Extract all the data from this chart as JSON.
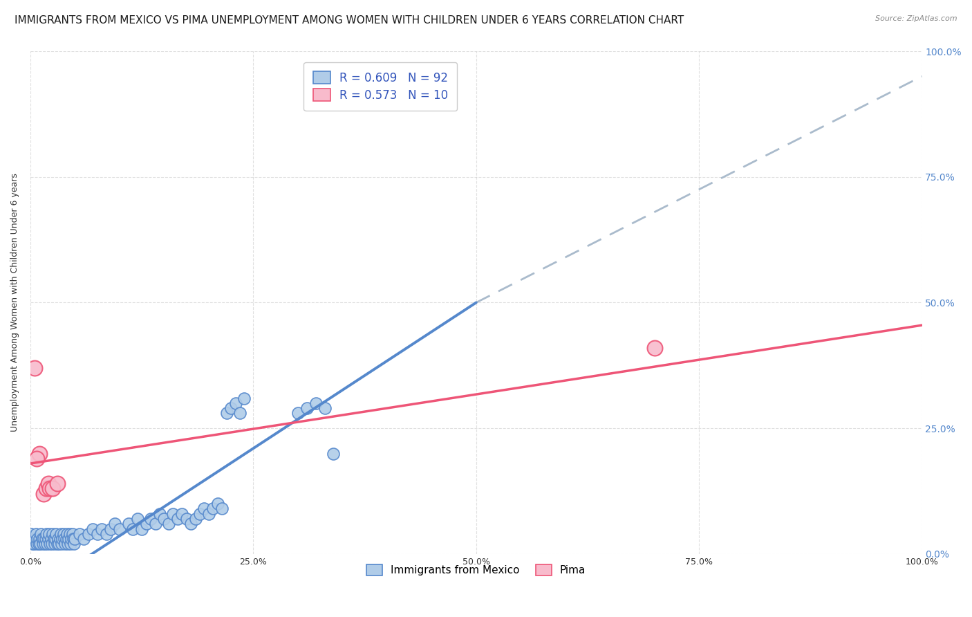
{
  "title": "IMMIGRANTS FROM MEXICO VS PIMA UNEMPLOYMENT AMONG WOMEN WITH CHILDREN UNDER 6 YEARS CORRELATION CHART",
  "source": "Source: ZipAtlas.com",
  "ylabel": "Unemployment Among Women with Children Under 6 years",
  "legend_label1": "Immigrants from Mexico",
  "legend_label2": "Pima",
  "R1": 0.609,
  "N1": 92,
  "R2": 0.573,
  "N2": 10,
  "blue_color": "#5588CC",
  "blue_fill": "#B0CCE8",
  "pink_color": "#EE5577",
  "pink_fill": "#F8BBCC",
  "blue_points": [
    [
      0.001,
      0.04
    ],
    [
      0.002,
      0.02
    ],
    [
      0.003,
      0.03
    ],
    [
      0.004,
      0.02
    ],
    [
      0.005,
      0.03
    ],
    [
      0.006,
      0.04
    ],
    [
      0.007,
      0.02
    ],
    [
      0.008,
      0.03
    ],
    [
      0.009,
      0.02
    ],
    [
      0.01,
      0.03
    ],
    [
      0.011,
      0.02
    ],
    [
      0.012,
      0.04
    ],
    [
      0.013,
      0.03
    ],
    [
      0.014,
      0.02
    ],
    [
      0.015,
      0.03
    ],
    [
      0.016,
      0.02
    ],
    [
      0.017,
      0.03
    ],
    [
      0.018,
      0.04
    ],
    [
      0.019,
      0.02
    ],
    [
      0.02,
      0.03
    ],
    [
      0.021,
      0.04
    ],
    [
      0.022,
      0.02
    ],
    [
      0.023,
      0.03
    ],
    [
      0.024,
      0.02
    ],
    [
      0.025,
      0.04
    ],
    [
      0.026,
      0.03
    ],
    [
      0.027,
      0.02
    ],
    [
      0.028,
      0.03
    ],
    [
      0.029,
      0.04
    ],
    [
      0.03,
      0.02
    ],
    [
      0.031,
      0.03
    ],
    [
      0.032,
      0.02
    ],
    [
      0.033,
      0.03
    ],
    [
      0.034,
      0.04
    ],
    [
      0.035,
      0.02
    ],
    [
      0.036,
      0.03
    ],
    [
      0.037,
      0.04
    ],
    [
      0.038,
      0.03
    ],
    [
      0.039,
      0.02
    ],
    [
      0.04,
      0.03
    ],
    [
      0.041,
      0.04
    ],
    [
      0.042,
      0.02
    ],
    [
      0.043,
      0.03
    ],
    [
      0.044,
      0.04
    ],
    [
      0.045,
      0.02
    ],
    [
      0.046,
      0.03
    ],
    [
      0.047,
      0.04
    ],
    [
      0.048,
      0.03
    ],
    [
      0.049,
      0.02
    ],
    [
      0.05,
      0.03
    ],
    [
      0.055,
      0.04
    ],
    [
      0.06,
      0.03
    ],
    [
      0.065,
      0.04
    ],
    [
      0.07,
      0.05
    ],
    [
      0.075,
      0.04
    ],
    [
      0.08,
      0.05
    ],
    [
      0.085,
      0.04
    ],
    [
      0.09,
      0.05
    ],
    [
      0.095,
      0.06
    ],
    [
      0.1,
      0.05
    ],
    [
      0.11,
      0.06
    ],
    [
      0.115,
      0.05
    ],
    [
      0.12,
      0.07
    ],
    [
      0.125,
      0.05
    ],
    [
      0.13,
      0.06
    ],
    [
      0.135,
      0.07
    ],
    [
      0.14,
      0.06
    ],
    [
      0.145,
      0.08
    ],
    [
      0.15,
      0.07
    ],
    [
      0.155,
      0.06
    ],
    [
      0.16,
      0.08
    ],
    [
      0.165,
      0.07
    ],
    [
      0.17,
      0.08
    ],
    [
      0.175,
      0.07
    ],
    [
      0.18,
      0.06
    ],
    [
      0.185,
      0.07
    ],
    [
      0.19,
      0.08
    ],
    [
      0.195,
      0.09
    ],
    [
      0.2,
      0.08
    ],
    [
      0.205,
      0.09
    ],
    [
      0.21,
      0.1
    ],
    [
      0.215,
      0.09
    ],
    [
      0.22,
      0.28
    ],
    [
      0.225,
      0.29
    ],
    [
      0.23,
      0.3
    ],
    [
      0.235,
      0.28
    ],
    [
      0.24,
      0.31
    ],
    [
      0.3,
      0.28
    ],
    [
      0.31,
      0.29
    ],
    [
      0.32,
      0.3
    ],
    [
      0.33,
      0.29
    ],
    [
      0.34,
      0.2
    ]
  ],
  "pink_points": [
    [
      0.005,
      0.37
    ],
    [
      0.01,
      0.2
    ],
    [
      0.015,
      0.12
    ],
    [
      0.018,
      0.13
    ],
    [
      0.02,
      0.14
    ],
    [
      0.022,
      0.13
    ],
    [
      0.025,
      0.13
    ],
    [
      0.03,
      0.14
    ],
    [
      0.7,
      0.41
    ],
    [
      0.007,
      0.19
    ]
  ],
  "blue_line_x": [
    0.0,
    0.5
  ],
  "blue_line_y": [
    -0.08,
    0.5
  ],
  "pink_line_x": [
    0.0,
    1.0
  ],
  "pink_line_y": [
    0.18,
    0.455
  ],
  "dash_line_x": [
    0.5,
    1.0
  ],
  "dash_line_y": [
    0.5,
    0.95
  ],
  "xlim": [
    0.0,
    1.0
  ],
  "ylim": [
    0.0,
    1.0
  ],
  "xticks": [
    0.0,
    0.25,
    0.5,
    0.75,
    1.0
  ],
  "yticks": [
    0.0,
    0.25,
    0.5,
    0.75,
    1.0
  ],
  "xtick_labels": [
    "0.0%",
    "25.0%",
    "50.0%",
    "75.0%",
    "100.0%"
  ],
  "right_ytick_labels": [
    "0.0%",
    "25.0%",
    "50.0%",
    "75.0%",
    "100.0%"
  ],
  "grid_color": "#CCCCCC",
  "title_fontsize": 11,
  "axis_fontsize": 9,
  "label_fontsize": 9,
  "background_color": "#FFFFFF"
}
